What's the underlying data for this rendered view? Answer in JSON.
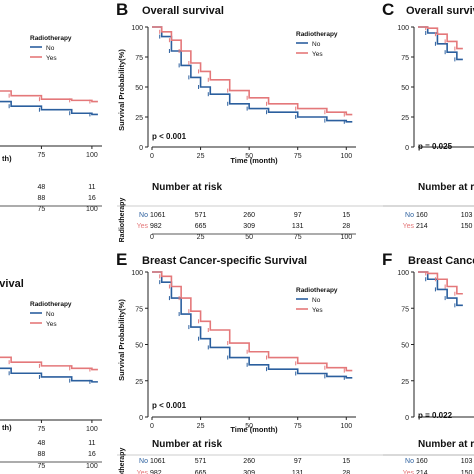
{
  "chart_data": [
    {
      "panel_letter": "",
      "title": "",
      "type": "line",
      "xlabel": "Time (month)",
      "xlabel_visible": "th)",
      "ylabel": "",
      "xlim": [
        0,
        105
      ],
      "ylim": [
        0,
        100
      ],
      "xticks": [
        75,
        100
      ],
      "yticks": [],
      "legend": {
        "title": "Radiotherapy",
        "entries": [
          "No",
          "Yes"
        ],
        "placement": "top-right"
      },
      "pvalue": "",
      "series": [
        {
          "name": "No",
          "color": "#2b5f9e",
          "x": [
            0,
            10,
            20,
            30,
            40,
            50,
            60,
            75,
            90,
            100
          ],
          "y": [
            100,
            80,
            63,
            51,
            43,
            38,
            34,
            31,
            28,
            27
          ]
        },
        {
          "name": "Yes",
          "color": "#e4787a",
          "x": [
            0,
            10,
            20,
            30,
            40,
            50,
            60,
            75,
            90,
            100
          ],
          "y": [
            100,
            86,
            72,
            61,
            53,
            47,
            43,
            40,
            39,
            38
          ]
        }
      ],
      "risk_table": {
        "title": "",
        "times": [
          75,
          100
        ],
        "rows": [
          {
            "label": "No",
            "values": [
              "48",
              "11"
            ]
          },
          {
            "label": "Yes",
            "values": [
              "88",
              "16"
            ]
          }
        ],
        "ticks": [
          "75",
          "100"
        ],
        "ylabel": ""
      }
    },
    {
      "panel_letter": "B",
      "title": "Overall survival",
      "type": "line",
      "xlabel": "Time (month)",
      "ylabel": "Survival Probability(%)",
      "xlim": [
        0,
        105
      ],
      "ylim": [
        0,
        100
      ],
      "xticks": [
        0,
        25,
        50,
        75,
        100
      ],
      "yticks": [
        0,
        25,
        50,
        75,
        100
      ],
      "legend": {
        "title": "Radiotherapy",
        "entries": [
          "No",
          "Yes"
        ],
        "placement": "top-right"
      },
      "pvalue": "p < 0.001",
      "series": [
        {
          "name": "No",
          "color": "#2b5f9e",
          "x": [
            0,
            5,
            10,
            15,
            20,
            25,
            30,
            40,
            50,
            60,
            75,
            90,
            100
          ],
          "y": [
            100,
            92,
            80,
            68,
            58,
            50,
            44,
            36,
            32,
            29,
            25,
            22,
            21
          ]
        },
        {
          "name": "Yes",
          "color": "#e4787a",
          "x": [
            0,
            5,
            10,
            15,
            20,
            25,
            30,
            40,
            50,
            60,
            75,
            90,
            100
          ],
          "y": [
            100,
            96,
            89,
            80,
            70,
            63,
            56,
            47,
            41,
            36,
            32,
            29,
            27
          ]
        }
      ],
      "risk_table": {
        "title": "Number at risk",
        "times": [
          0,
          25,
          50,
          75,
          100
        ],
        "rows": [
          {
            "label": "No",
            "values": [
              "1061",
              "571",
              "260",
              "97",
              "15"
            ]
          },
          {
            "label": "Yes",
            "values": [
              "982",
              "665",
              "309",
              "131",
              "28"
            ]
          }
        ],
        "ticks": [
          "0",
          "25",
          "50",
          "75",
          "100"
        ],
        "ylabel": "Radiotherapy"
      }
    },
    {
      "panel_letter": "C",
      "title": "Overall surviva",
      "type": "line",
      "xlabel": "",
      "ylabel": "",
      "xlim": [
        0,
        105
      ],
      "ylim": [
        0,
        100
      ],
      "xticks": [],
      "yticks": [
        0,
        25,
        50,
        75,
        100
      ],
      "legend": null,
      "pvalue": "p = 0.025",
      "series": [
        {
          "name": "No",
          "color": "#2b5f9e",
          "x": [
            0,
            5,
            10,
            15,
            20
          ],
          "y": [
            100,
            95,
            86,
            79,
            73
          ]
        },
        {
          "name": "Yes",
          "color": "#e4787a",
          "x": [
            0,
            5,
            10,
            15,
            20
          ],
          "y": [
            100,
            99,
            94,
            88,
            82
          ]
        }
      ],
      "risk_table": {
        "title": "Number at risk",
        "times": [
          0,
          25
        ],
        "rows": [
          {
            "label": "No",
            "values": [
              "160",
              "103"
            ]
          },
          {
            "label": "Yes",
            "values": [
              "214",
              "150"
            ]
          }
        ],
        "ticks": [],
        "ylabel": ""
      }
    },
    {
      "panel_letter": "",
      "title": "rvival",
      "type": "line",
      "xlabel": "Time (month)",
      "xlabel_visible": "th)",
      "ylabel": "",
      "xlim": [
        0,
        105
      ],
      "ylim": [
        0,
        100
      ],
      "xticks": [
        75,
        100
      ],
      "yticks": [],
      "legend": {
        "title": "Radiotherapy",
        "entries": [
          "No",
          "Yes"
        ],
        "placement": "top-right"
      },
      "pvalue": "",
      "series": [
        {
          "name": "No",
          "color": "#2b5f9e",
          "x": [
            0,
            10,
            20,
            30,
            40,
            50,
            60,
            75,
            90,
            100
          ],
          "y": [
            100,
            82,
            66,
            55,
            47,
            42,
            38,
            35,
            32,
            31
          ]
        },
        {
          "name": "Yes",
          "color": "#e4787a",
          "x": [
            0,
            10,
            20,
            30,
            40,
            50,
            60,
            75,
            90,
            100
          ],
          "y": [
            100,
            88,
            75,
            64,
            57,
            51,
            47,
            44,
            42,
            41
          ]
        }
      ],
      "risk_table": {
        "title": "",
        "times": [
          75,
          100
        ],
        "rows": [
          {
            "label": "No",
            "values": [
              "48",
              "11"
            ]
          },
          {
            "label": "Yes",
            "values": [
              "88",
              "16"
            ]
          }
        ],
        "ticks": [
          "75",
          "100"
        ],
        "ylabel": ""
      }
    },
    {
      "panel_letter": "E",
      "title": "Breast Cancer-specific Survival",
      "type": "line",
      "xlabel": "Time (month)",
      "ylabel": "Survival Probability(%)",
      "xlim": [
        0,
        105
      ],
      "ylim": [
        0,
        100
      ],
      "xticks": [
        0,
        25,
        50,
        75,
        100
      ],
      "yticks": [
        0,
        25,
        50,
        75,
        100
      ],
      "legend": {
        "title": "Radiotherapy",
        "entries": [
          "No",
          "Yes"
        ],
        "placement": "top-right"
      },
      "pvalue": "p < 0.001",
      "series": [
        {
          "name": "No",
          "color": "#2b5f9e",
          "x": [
            0,
            5,
            10,
            15,
            20,
            25,
            30,
            40,
            50,
            60,
            75,
            90,
            100
          ],
          "y": [
            100,
            93,
            82,
            71,
            62,
            54,
            48,
            41,
            36,
            33,
            30,
            28,
            27
          ]
        },
        {
          "name": "Yes",
          "color": "#e4787a",
          "x": [
            0,
            5,
            10,
            15,
            20,
            25,
            30,
            40,
            50,
            60,
            75,
            90,
            100
          ],
          "y": [
            100,
            97,
            90,
            82,
            73,
            66,
            60,
            51,
            45,
            41,
            37,
            34,
            32
          ]
        }
      ],
      "risk_table": {
        "title": "Number at risk",
        "times": [
          0,
          25,
          50,
          75,
          100
        ],
        "rows": [
          {
            "label": "No",
            "values": [
              "1061",
              "571",
              "260",
              "97",
              "15"
            ]
          },
          {
            "label": "Yes",
            "values": [
              "982",
              "665",
              "309",
              "131",
              "28"
            ]
          }
        ],
        "ticks": [
          "0",
          "25",
          "50",
          "75",
          "100"
        ],
        "ylabel": "Radiotherapy"
      }
    },
    {
      "panel_letter": "F",
      "title": "Breast Cancer-",
      "type": "line",
      "xlabel": "",
      "ylabel": "",
      "xlim": [
        0,
        105
      ],
      "ylim": [
        0,
        100
      ],
      "xticks": [],
      "yticks": [
        0,
        25,
        50,
        75,
        100
      ],
      "legend": null,
      "pvalue": "p = 0.022",
      "series": [
        {
          "name": "No",
          "color": "#2b5f9e",
          "x": [
            0,
            5,
            10,
            15,
            20
          ],
          "y": [
            100,
            95,
            88,
            82,
            77
          ]
        },
        {
          "name": "Yes",
          "color": "#e4787a",
          "x": [
            0,
            5,
            10,
            15,
            20
          ],
          "y": [
            100,
            99,
            95,
            90,
            85
          ]
        }
      ],
      "risk_table": {
        "title": "Number at risk",
        "times": [
          0,
          25
        ],
        "rows": [
          {
            "label": "No",
            "values": [
              "160",
              "103"
            ]
          },
          {
            "label": "Yes",
            "values": [
              "214",
              "150"
            ]
          }
        ],
        "ticks": [],
        "ylabel": ""
      }
    }
  ]
}
